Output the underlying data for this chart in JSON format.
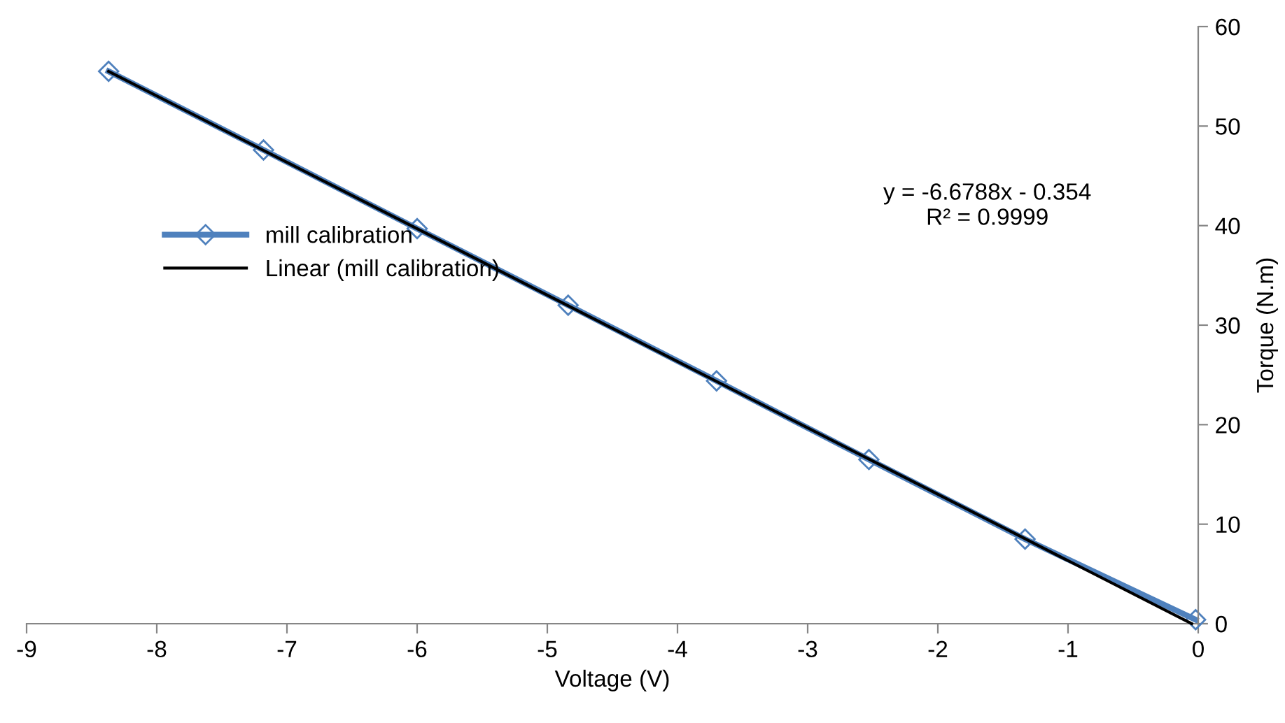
{
  "chart_data": {
    "type": "line",
    "xlabel": "Voltage (V)",
    "ylabel": "Torque (N.m)",
    "xlim": [
      -9,
      0
    ],
    "xticks": [
      -9,
      -8,
      -7,
      -6,
      -5,
      -4,
      -3,
      -2,
      -1,
      0
    ],
    "ylim": [
      0,
      60
    ],
    "yticks": [
      0,
      10,
      20,
      30,
      40,
      50,
      60
    ],
    "grid": false,
    "legend": "left",
    "annotations": [
      "y = -6.6788x - 0.354\nR² = 0.9999"
    ],
    "series": [
      {
        "name": "mill calibration",
        "color": "#4f81bd",
        "marker": "diamond",
        "x": [
          -8.37,
          -7.18,
          -6.0,
          -4.84,
          -3.7,
          -2.53,
          -1.33,
          -0.02
        ],
        "values": [
          55.5,
          47.6,
          39.7,
          32.0,
          24.4,
          16.5,
          8.5,
          0.4
        ]
      },
      {
        "name": "Linear (mill calibration)",
        "color": "#000000",
        "marker": "none",
        "x": [
          -8.37,
          -0.05
        ],
        "values": [
          55.5,
          0
        ]
      }
    ]
  }
}
